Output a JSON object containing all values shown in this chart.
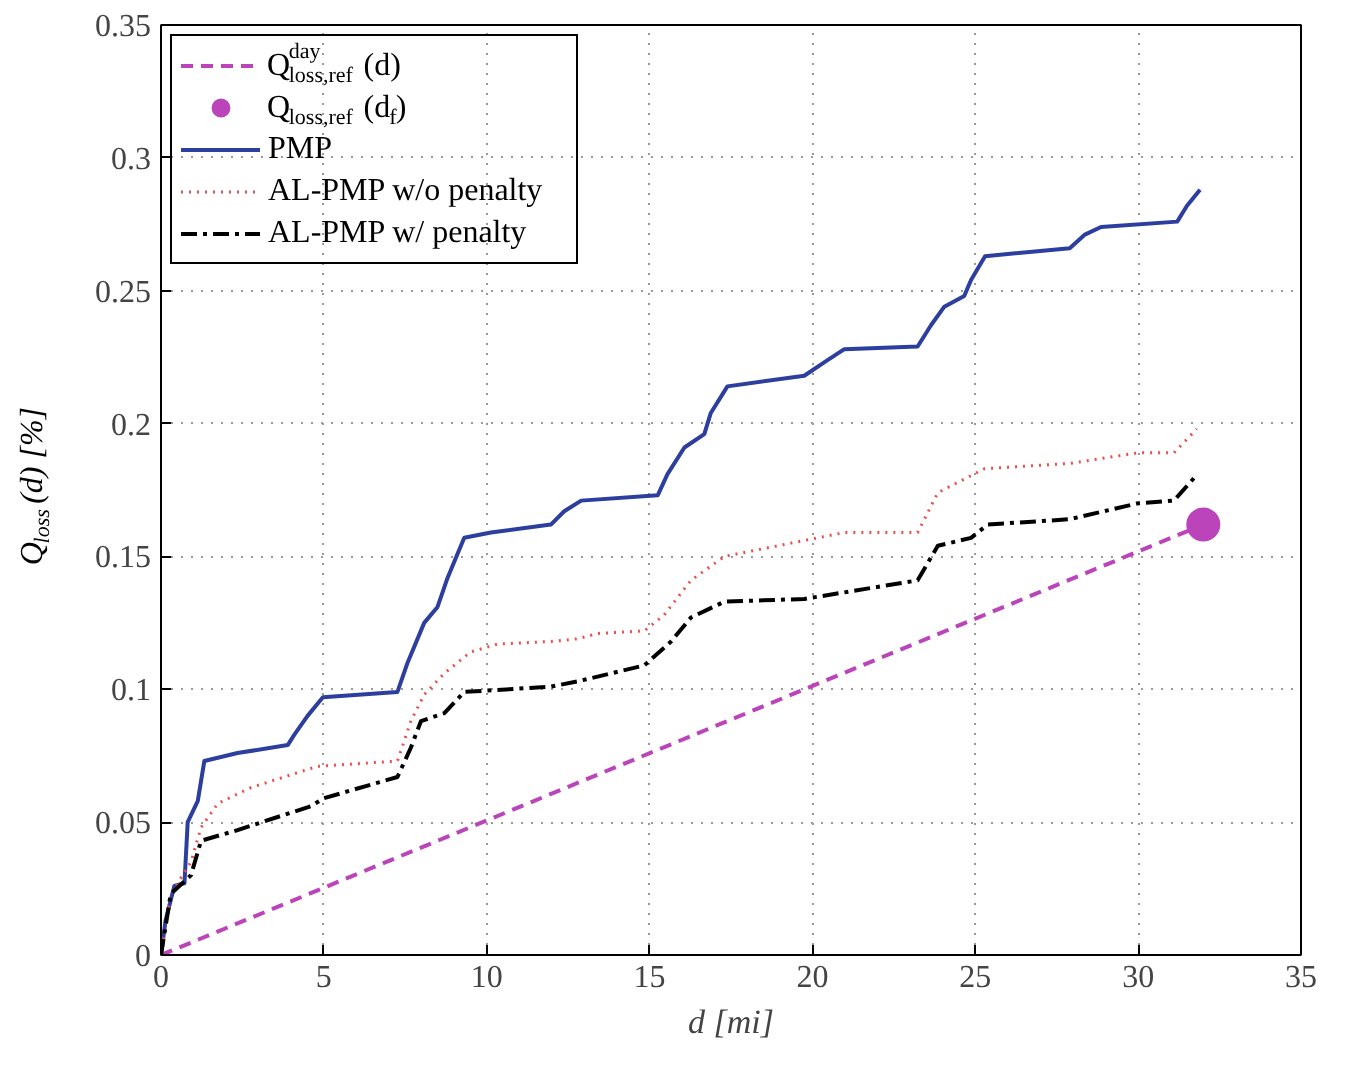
{
  "chart_data": {
    "type": "line",
    "xlabel": "d [mi]",
    "ylabel": "Q$_{loss}$(d) [%]",
    "xlim": [
      0,
      35
    ],
    "ylim": [
      0,
      0.35
    ],
    "xticks": [
      0,
      5,
      10,
      15,
      20,
      25,
      30,
      35
    ],
    "yticks": [
      0,
      0.05,
      0.1,
      0.15,
      0.2,
      0.25,
      0.3,
      0.35
    ],
    "grid": true,
    "legend": "top left",
    "series": [
      {
        "name": "Q$^{day}$$_{loss,ref}$(d)",
        "line_style": "dashed",
        "color": "#bb44bb",
        "x": [
          0,
          32
        ],
        "values": [
          0,
          0.162
        ]
      },
      {
        "name": "Q$_{loss,ref}$(d$_{f}$)",
        "type": "scatter",
        "marker": "circle",
        "color": "#bb44bb",
        "x": [
          32
        ],
        "values": [
          0.162
        ]
      },
      {
        "name": "PMP",
        "line_style": "solid",
        "color": "#2c3e9e",
        "x": [
          0,
          0.14,
          0.41,
          0.72,
          0.82,
          1.13,
          1.33,
          2.35,
          3.89,
          4.1,
          4.5,
          4.97,
          7.26,
          7.57,
          8.08,
          8.49,
          8.8,
          9.31,
          10.13,
          11.97,
          12.38,
          12.9,
          15.25,
          15.55,
          16.07,
          16.68,
          16.88,
          17.39,
          19.75,
          20.36,
          20.98,
          23.23,
          23.64,
          24.05,
          24.66,
          24.87,
          25.3,
          27.9,
          28.35,
          28.86,
          31.2,
          31.5,
          31.9
        ],
        "values": [
          0,
          0.013,
          0.026,
          0.027,
          0.05,
          0.058,
          0.073,
          0.076,
          0.079,
          0.083,
          0.09,
          0.097,
          0.099,
          0.11,
          0.125,
          0.131,
          0.142,
          0.157,
          0.159,
          0.162,
          0.167,
          0.171,
          0.173,
          0.181,
          0.191,
          0.196,
          0.204,
          0.214,
          0.218,
          0.223,
          0.228,
          0.229,
          0.237,
          0.244,
          0.248,
          0.254,
          0.263,
          0.266,
          0.271,
          0.274,
          0.276,
          0.282,
          0.288
        ]
      },
      {
        "name": "AL-PMP w/o penalty",
        "line_style": "dotted",
        "color": "#e8504a",
        "x": [
          0,
          0.3,
          0.92,
          1.23,
          1.74,
          2.76,
          4.8,
          7.26,
          7.67,
          8.08,
          8.7,
          9.5,
          10.33,
          11.97,
          12.8,
          13.4,
          14.84,
          15.45,
          16.27,
          17.3,
          18.93,
          20.98,
          23.23,
          23.85,
          25.28,
          27.9,
          30,
          31.1,
          31.8
        ],
        "values": [
          0,
          0.023,
          0.035,
          0.048,
          0.057,
          0.063,
          0.071,
          0.073,
          0.088,
          0.098,
          0.106,
          0.114,
          0.117,
          0.118,
          0.119,
          0.121,
          0.122,
          0.128,
          0.141,
          0.15,
          0.154,
          0.159,
          0.159,
          0.174,
          0.183,
          0.185,
          0.189,
          0.189,
          0.198
        ]
      },
      {
        "name": "AL-PMP w/ penalty",
        "line_style": "dashdot",
        "color": "#000000",
        "x": [
          0,
          0.3,
          0.92,
          1.23,
          2.35,
          4.6,
          5,
          7.26,
          7.67,
          7.98,
          8.7,
          9.31,
          11.97,
          12.8,
          14.84,
          15.66,
          16.27,
          17.3,
          19.75,
          23.23,
          23.85,
          24.87,
          25.38,
          27.9,
          30,
          31.1,
          31.75
        ],
        "values": [
          0,
          0.023,
          0.03,
          0.043,
          0.047,
          0.056,
          0.059,
          0.067,
          0.078,
          0.088,
          0.091,
          0.099,
          0.101,
          0.103,
          0.109,
          0.118,
          0.127,
          0.133,
          0.134,
          0.141,
          0.154,
          0.157,
          0.162,
          0.164,
          0.17,
          0.171,
          0.18
        ]
      }
    ]
  }
}
